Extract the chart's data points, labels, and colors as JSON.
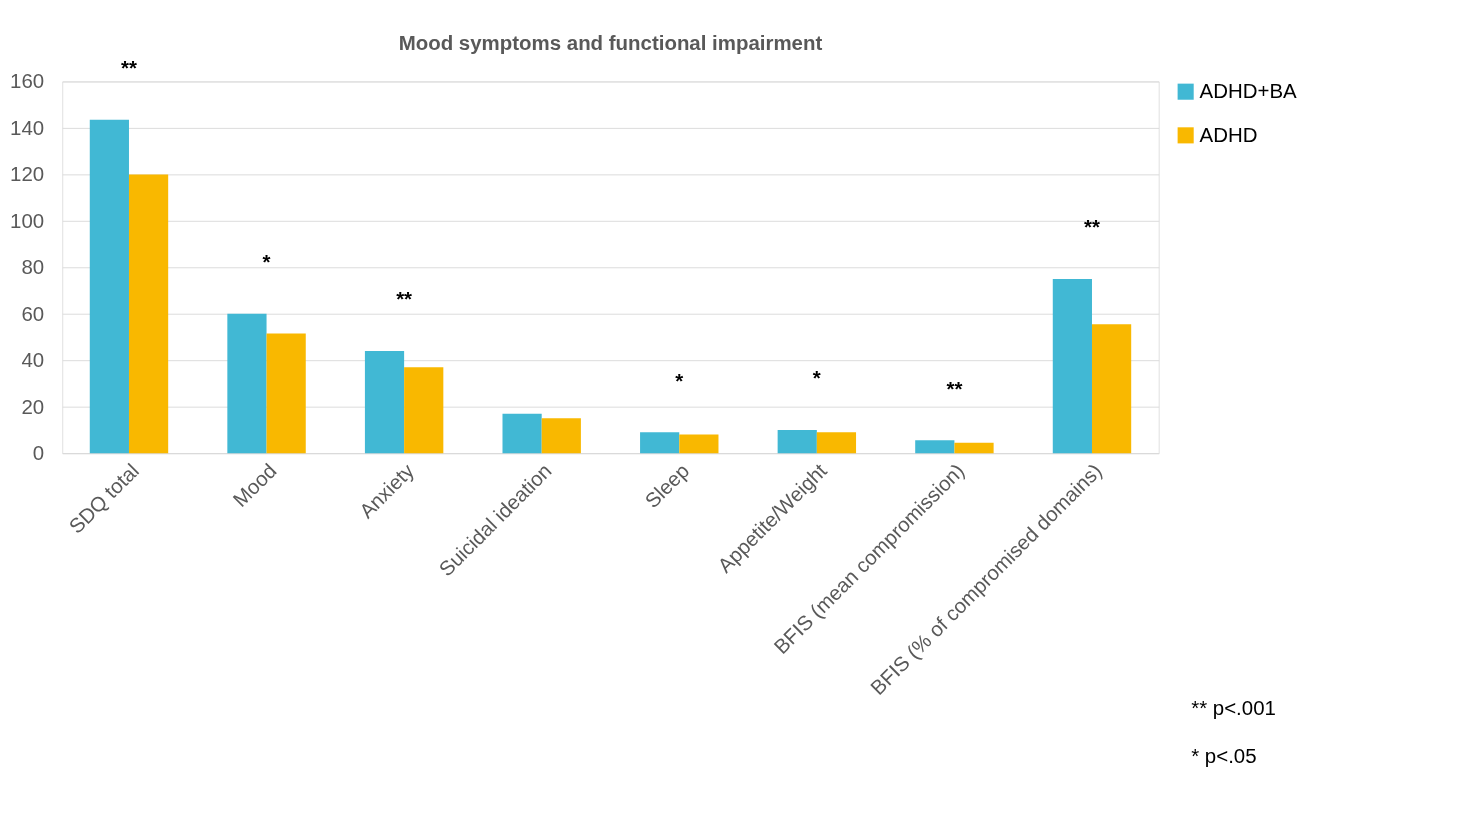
{
  "chart_data": {
    "type": "bar",
    "title": "Mood symptoms and functional impairment",
    "categories": [
      "SDQ total",
      "Mood",
      "Anxiety",
      "Suicidal ideation",
      "Sleep",
      "Appetite/Weight",
      "BFIS (mean compromission)",
      "BFIS (% of compromised domains)"
    ],
    "series": [
      {
        "name": "ADHD+BA",
        "color": "#41b8d4",
        "values": [
          143.5,
          60,
          44,
          17,
          9,
          10,
          5.6,
          75
        ]
      },
      {
        "name": "ADHD",
        "color": "#f9b800",
        "values": [
          120,
          51.5,
          37,
          15,
          8,
          9,
          4.5,
          55.5
        ]
      }
    ],
    "ylim": [
      0,
      160
    ],
    "yticks": [
      0,
      20,
      40,
      60,
      80,
      100,
      120,
      140,
      160
    ],
    "grid": "y",
    "legend": "right",
    "annotations": [
      "**",
      "*",
      "**",
      "*",
      "*",
      "**",
      "**",
      "** p<.001",
      "* p<.05"
    ]
  }
}
